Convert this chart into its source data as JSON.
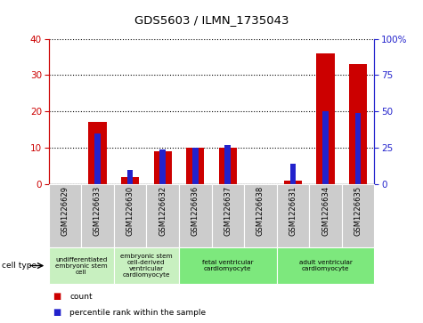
{
  "title": "GDS5603 / ILMN_1735043",
  "samples": [
    "GSM1226629",
    "GSM1226633",
    "GSM1226630",
    "GSM1226632",
    "GSM1226636",
    "GSM1226637",
    "GSM1226638",
    "GSM1226631",
    "GSM1226634",
    "GSM1226635"
  ],
  "counts": [
    0,
    17,
    2,
    9,
    10,
    10,
    0,
    1,
    36,
    33
  ],
  "percentiles": [
    0,
    35,
    10,
    24,
    25,
    27,
    0,
    14,
    50,
    49
  ],
  "left_ylim": [
    0,
    40
  ],
  "right_ylim": [
    0,
    100
  ],
  "left_yticks": [
    0,
    10,
    20,
    30,
    40
  ],
  "right_yticks": [
    0,
    25,
    50,
    75,
    100
  ],
  "right_yticklabels": [
    "0",
    "25",
    "50",
    "75",
    "100%"
  ],
  "bar_color_red": "#cc0000",
  "bar_color_blue": "#2222cc",
  "cell_types": [
    {
      "label": "undifferentiated\nembryonic stem\ncell",
      "start": 0,
      "end": 2,
      "color": "#c8f0c0"
    },
    {
      "label": "embryonic stem\ncell-derived\nventricular\ncardiomyocyte",
      "start": 2,
      "end": 4,
      "color": "#c8f0c0"
    },
    {
      "label": "fetal ventricular\ncardiomyocyte",
      "start": 4,
      "end": 7,
      "color": "#7de87d"
    },
    {
      "label": "adult ventricular\ncardiomyocyte",
      "start": 7,
      "end": 10,
      "color": "#7de87d"
    }
  ],
  "left_axis_color": "#cc0000",
  "right_axis_color": "#2222cc",
  "background_color": "#ffffff",
  "plot_bg_color": "#ffffff",
  "sample_box_color": "#cccccc",
  "legend_count_label": "count",
  "legend_pct_label": "percentile rank within the sample",
  "cell_type_label": "cell type"
}
